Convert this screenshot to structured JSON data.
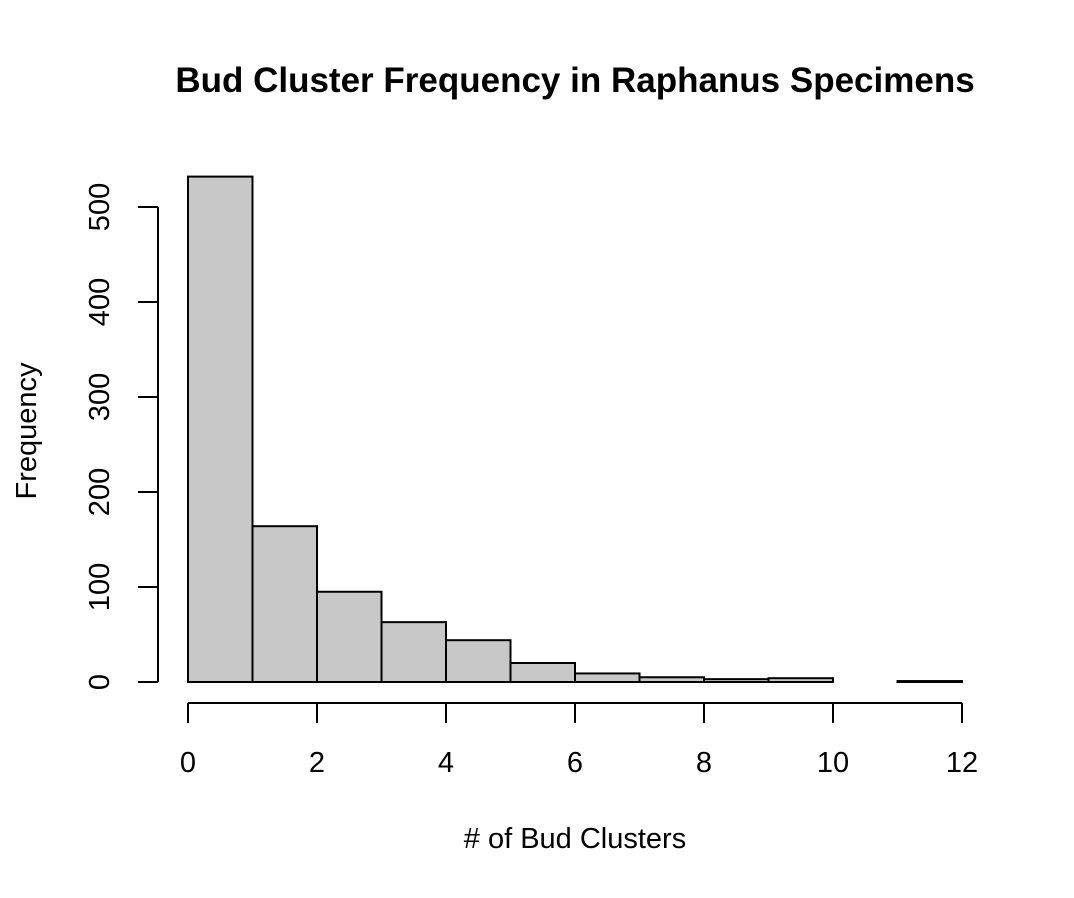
{
  "chart_data": {
    "type": "bar",
    "title": "Bud Cluster Frequency in Raphanus Specimens",
    "xlabel": "# of Bud Clusters",
    "ylabel": "Frequency",
    "bin_edges": [
      0,
      1,
      2,
      3,
      4,
      5,
      6,
      7,
      8,
      9,
      10,
      11,
      12
    ],
    "values": [
      532,
      164,
      95,
      63,
      44,
      20,
      9,
      5,
      3,
      4,
      0,
      1
    ],
    "xlim": [
      0,
      12
    ],
    "ylim": [
      0,
      500
    ],
    "x_ticks": [
      0,
      2,
      4,
      6,
      8,
      10,
      12
    ],
    "y_ticks": [
      0,
      100,
      200,
      300,
      400,
      500
    ],
    "bar_color": "#c8c8c8",
    "edge_color": "#000000",
    "grid": false,
    "legend": "none"
  }
}
